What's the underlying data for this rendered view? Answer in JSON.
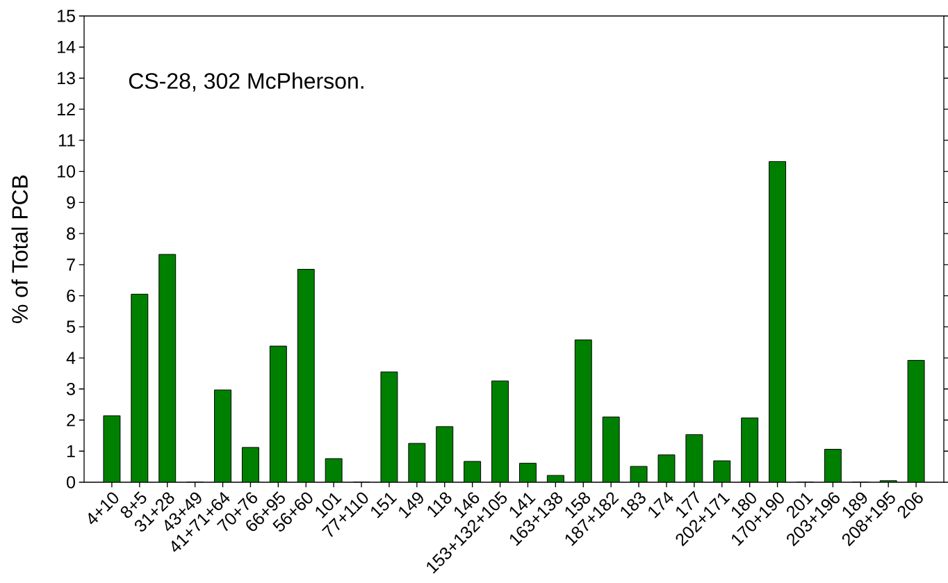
{
  "chart_data": {
    "type": "bar",
    "ylabel": "% of Total PCB",
    "annotations": [
      "CS-28, 302 McPherson."
    ],
    "categories": [
      "4+10",
      "8+5",
      "31+28",
      "43+49",
      "41+71+64",
      "70+76",
      "66+95",
      "56+60",
      "101",
      "77+110",
      "151",
      "149",
      "118",
      "146",
      "153+132+105",
      "141",
      "163+138",
      "158",
      "187+182",
      "183",
      "174",
      "177",
      "202+171",
      "180",
      "170+190",
      "201",
      "203+196",
      "189",
      "208+195",
      "206"
    ],
    "values": [
      2.14,
      6.05,
      7.33,
      0,
      2.97,
      1.12,
      4.38,
      6.85,
      0.76,
      0,
      3.55,
      1.25,
      1.79,
      0.67,
      3.26,
      0.61,
      0.22,
      4.58,
      2.1,
      0.51,
      0.88,
      1.53,
      0.69,
      2.07,
      10.32,
      0,
      1.06,
      0,
      0.05,
      3.92
    ],
    "color": "#008000",
    "ylim": [
      0,
      15
    ],
    "yticks": [
      0,
      1,
      2,
      3,
      4,
      5,
      6,
      7,
      8,
      9,
      10,
      11,
      12,
      13,
      14,
      15
    ]
  }
}
